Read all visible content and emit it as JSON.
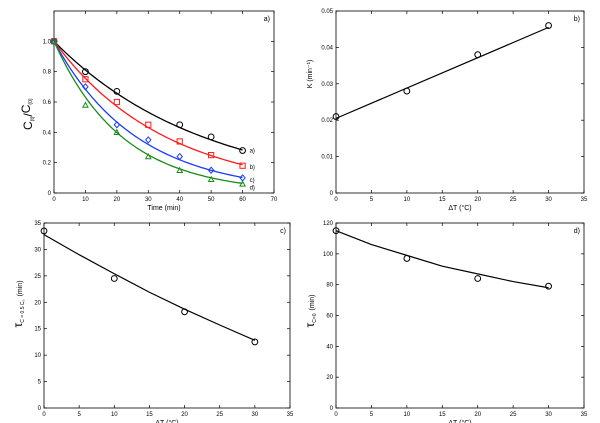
{
  "chart_data": [
    {
      "id": "a",
      "type": "line",
      "panel_label": "a)",
      "ylabel": {
        "main": "C",
        "sub1": "(t)",
        "slash": "/",
        "main2": "C",
        "sub2": "(0)"
      },
      "xlabel": "Time (min)",
      "xlim": [
        0,
        70
      ],
      "ylim": [
        0,
        1.2
      ],
      "xticks": [
        "0",
        "10",
        "20",
        "30",
        "40",
        "50",
        "60",
        "70"
      ],
      "yticks": [
        "0",
        "0.2",
        "0.4",
        "0.6",
        "0.8",
        "1.0"
      ],
      "grid": false,
      "series": [
        {
          "label": "a)",
          "color": "#000000",
          "marker": "circle",
          "k": 0.021,
          "x": [
            0,
            10,
            20,
            40,
            50,
            60
          ],
          "y": [
            1.0,
            0.8,
            0.67,
            0.45,
            0.37,
            0.28
          ]
        },
        {
          "label": "b)",
          "color": "#ff1a1a",
          "marker": "square",
          "k": 0.028,
          "x": [
            0,
            10,
            20,
            30,
            40,
            50,
            60
          ],
          "y": [
            1.0,
            0.75,
            0.6,
            0.45,
            0.34,
            0.25,
            0.18
          ]
        },
        {
          "label": "c)",
          "color": "#1a3cff",
          "marker": "diamond",
          "k": 0.038,
          "x": [
            0,
            10,
            20,
            30,
            40,
            50,
            60
          ],
          "y": [
            1.0,
            0.7,
            0.45,
            0.35,
            0.24,
            0.15,
            0.1
          ]
        },
        {
          "label": "d)",
          "color": "#1a8c1a",
          "marker": "triangle",
          "k": 0.046,
          "x": [
            0,
            10,
            20,
            30,
            40,
            50,
            60
          ],
          "y": [
            1.0,
            0.58,
            0.4,
            0.24,
            0.15,
            0.09,
            0.06
          ]
        }
      ]
    },
    {
      "id": "b",
      "type": "scatter",
      "panel_label": "b)",
      "ylabel": "K  (min⁻¹)",
      "xlabel": "ΔT (°C)",
      "xlim": [
        0,
        35
      ],
      "ylim": [
        0,
        0.05
      ],
      "xticks": [
        "0",
        "5",
        "10",
        "15",
        "20",
        "25",
        "30",
        "35"
      ],
      "yticks": [
        "0",
        "0.01",
        "0.02",
        "0.03",
        "0.04",
        "0.05"
      ],
      "grid": false,
      "points": {
        "x": [
          0,
          10,
          20,
          30
        ],
        "y": [
          0.021,
          0.028,
          0.038,
          0.046
        ]
      },
      "fit": {
        "x": [
          0,
          30
        ],
        "y": [
          0.0205,
          0.0455
        ]
      }
    },
    {
      "id": "c",
      "type": "scatter",
      "panel_label": "c)",
      "ylabel": {
        "main": "τ",
        "sub": "C = 0.5 C₀",
        "unit": "(min)"
      },
      "xlabel": "ΔT (°C)",
      "xlim": [
        0,
        35
      ],
      "ylim": [
        0,
        35
      ],
      "xticks": [
        "0",
        "5",
        "10",
        "15",
        "20",
        "25",
        "30",
        "35"
      ],
      "yticks": [
        "0",
        "5",
        "10",
        "15",
        "20",
        "25",
        "30",
        "35"
      ],
      "grid": false,
      "points": {
        "x": [
          0,
          10,
          20,
          30
        ],
        "y": [
          33.5,
          24.5,
          18.2,
          12.5
        ]
      },
      "fit": {
        "x": [
          0,
          5,
          10,
          15,
          20,
          25,
          30
        ],
        "y": [
          32.8,
          29.0,
          25.4,
          21.9,
          18.7,
          15.7,
          12.8
        ]
      }
    },
    {
      "id": "d",
      "type": "scatter",
      "panel_label": "d)",
      "ylabel": {
        "main": "τ",
        "sub": "C=0",
        "unit": "(min)"
      },
      "xlabel": "ΔT (°C)",
      "xlim": [
        0,
        35
      ],
      "ylim": [
        0,
        120
      ],
      "xticks": [
        "0",
        "5",
        "10",
        "15",
        "20",
        "25",
        "30",
        "35"
      ],
      "yticks": [
        "0",
        "20",
        "40",
        "60",
        "80",
        "100",
        "120"
      ],
      "grid": false,
      "points": {
        "x": [
          0,
          10,
          20,
          30
        ],
        "y": [
          115,
          97,
          84,
          79
        ]
      },
      "fit": {
        "x": [
          0,
          5,
          10,
          15,
          20,
          25,
          30
        ],
        "y": [
          115,
          106,
          99,
          92,
          87,
          82,
          78
        ]
      }
    }
  ]
}
